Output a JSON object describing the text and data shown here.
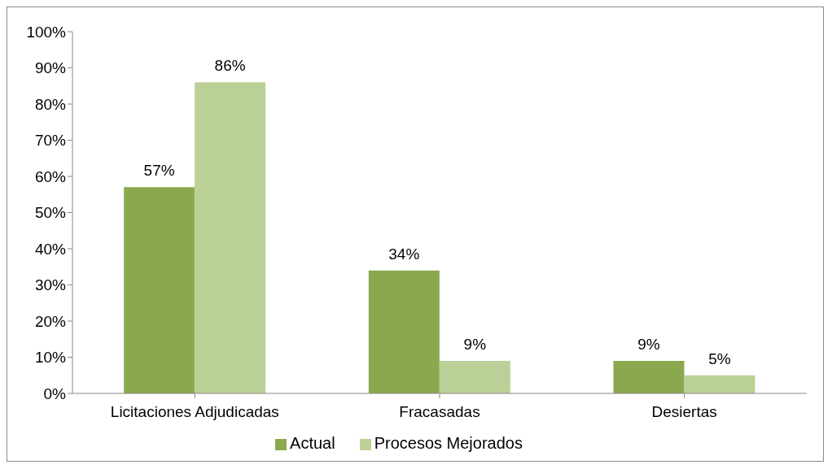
{
  "chart_data": {
    "type": "bar",
    "categories": [
      "Licitaciones Adjudicadas",
      "Fracasadas",
      "Desiertas"
    ],
    "series": [
      {
        "name": "Actual",
        "color": "#8aa94f",
        "values": [
          57,
          34,
          9
        ],
        "value_labels": [
          "57%",
          "34%",
          "9%"
        ]
      },
      {
        "name": "Procesos Mejorados",
        "color": "#bbd096",
        "values": [
          86,
          9,
          5
        ],
        "value_labels": [
          "86%",
          "9%",
          "5%"
        ]
      }
    ],
    "ylim": [
      0,
      100
    ],
    "yticks": [
      {
        "value": 0,
        "label": "0%"
      },
      {
        "value": 10,
        "label": "10%"
      },
      {
        "value": 20,
        "label": "20%"
      },
      {
        "value": 30,
        "label": "30%"
      },
      {
        "value": 40,
        "label": "40%"
      },
      {
        "value": 50,
        "label": "50%"
      },
      {
        "value": 60,
        "label": "60%"
      },
      {
        "value": 70,
        "label": "70%"
      },
      {
        "value": 80,
        "label": "80%"
      },
      {
        "value": 90,
        "label": "90%"
      },
      {
        "value": 100,
        "label": "100%"
      }
    ],
    "grid": false,
    "legend": "bottom"
  }
}
